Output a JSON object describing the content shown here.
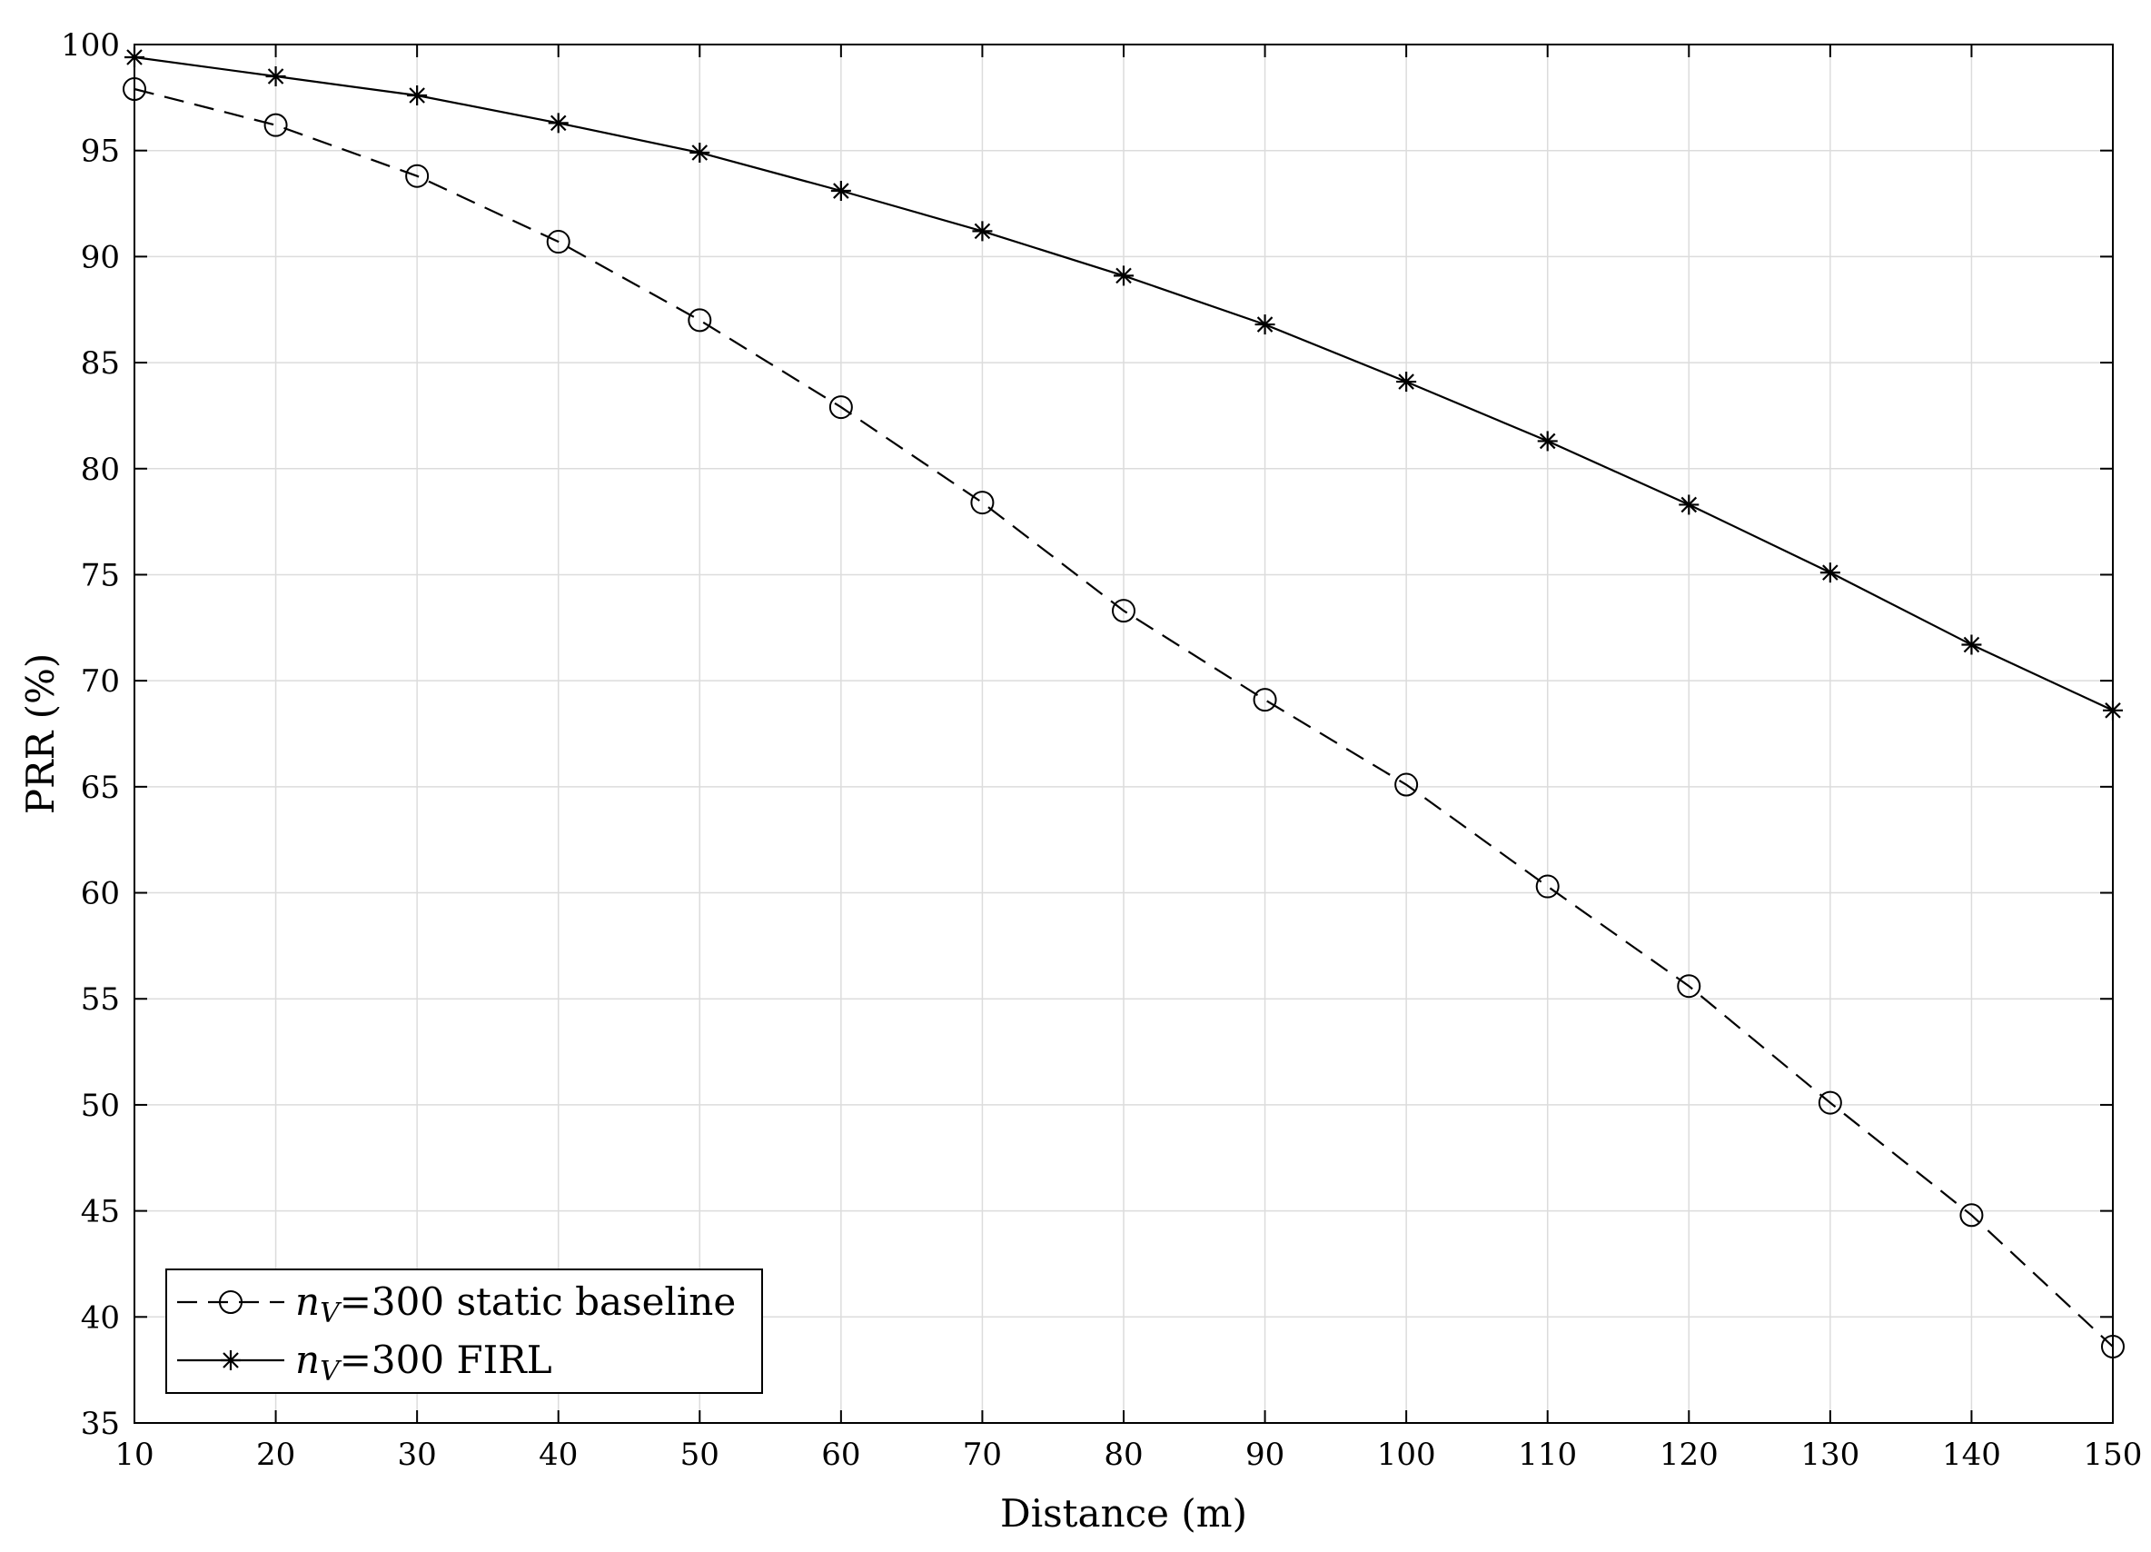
{
  "chart_data": {
    "type": "line",
    "xlabel": "Distance (m)",
    "ylabel": "PRR (%)",
    "xlim": [
      10,
      150
    ],
    "ylim": [
      35,
      100
    ],
    "xticks": [
      10,
      20,
      30,
      40,
      50,
      60,
      70,
      80,
      90,
      100,
      110,
      120,
      130,
      140,
      150
    ],
    "yticks": [
      35,
      40,
      45,
      50,
      55,
      60,
      65,
      70,
      75,
      80,
      85,
      90,
      95,
      100
    ],
    "grid": true,
    "legend_position": "bottom-left",
    "x": [
      10,
      20,
      30,
      40,
      50,
      60,
      70,
      80,
      90,
      100,
      110,
      120,
      130,
      140,
      150
    ],
    "series": [
      {
        "name": "n_V=300 static baseline",
        "legend_var": "n",
        "legend_sub": "V",
        "legend_rest": "=300 static baseline",
        "marker": "circle",
        "line_style": "dashed",
        "values": [
          97.9,
          96.2,
          93.8,
          90.7,
          87.0,
          82.9,
          78.4,
          73.3,
          69.1,
          65.1,
          60.3,
          55.6,
          50.1,
          44.8,
          38.6
        ]
      },
      {
        "name": "n_V=300 FIRL",
        "legend_var": "n",
        "legend_sub": "V",
        "legend_rest": "=300 FIRL",
        "marker": "asterisk",
        "line_style": "solid",
        "values": [
          99.4,
          98.5,
          97.6,
          96.3,
          94.9,
          93.1,
          91.2,
          89.1,
          86.8,
          84.1,
          81.3,
          78.3,
          75.1,
          71.7,
          68.6
        ]
      }
    ]
  }
}
